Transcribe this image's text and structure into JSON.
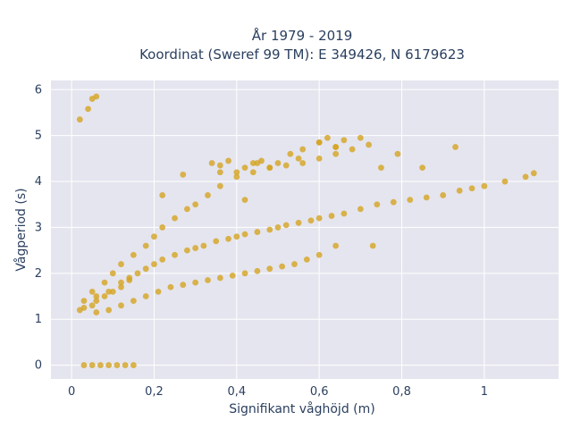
{
  "chart_data": {
    "type": "scatter",
    "title": [
      "År 1979 - 2019",
      "Koordinat (Sweref 99 TM): E 349426, N 6179623"
    ],
    "xlabel": "Signifikant våghöjd (m)",
    "ylabel": "Vågperiod (s)",
    "xlim": [
      -0.05,
      1.18
    ],
    "ylim": [
      -0.3,
      6.2
    ],
    "xticks": [
      0,
      0.2,
      0.4,
      0.6,
      0.8,
      1
    ],
    "xtick_labels": [
      "0",
      "0,2",
      "0,4",
      "0,6",
      "0,8",
      "1"
    ],
    "yticks": [
      0,
      1,
      2,
      3,
      4,
      5,
      6
    ],
    "ytick_labels": [
      "0",
      "1",
      "2",
      "3",
      "4",
      "5",
      "6"
    ],
    "grid": true,
    "marker_color": "#D4A420",
    "plot_bg": "#E5E5EF",
    "series": [
      {
        "x": [
          0.02,
          0.03,
          0.05,
          0.06,
          0.08,
          0.1,
          0.12,
          0.14,
          0.16,
          0.18,
          0.2,
          0.22,
          0.25,
          0.28,
          0.3,
          0.32,
          0.35,
          0.38,
          0.4,
          0.42,
          0.45,
          0.48,
          0.5,
          0.52,
          0.55,
          0.58,
          0.6,
          0.63,
          0.66,
          0.7,
          0.74,
          0.78,
          0.82,
          0.86,
          0.9,
          0.94,
          0.97,
          1.0,
          1.05,
          1.1,
          1.12,
          0.05,
          0.08,
          0.1,
          0.12,
          0.15,
          0.18,
          0.2,
          0.22,
          0.25,
          0.28,
          0.3,
          0.33,
          0.36,
          0.4,
          0.44,
          0.48,
          0.52,
          0.56,
          0.6,
          0.64,
          0.68,
          0.72,
          0.06,
          0.09,
          0.12,
          0.15,
          0.18,
          0.21,
          0.24,
          0.27,
          0.3,
          0.33,
          0.36,
          0.39,
          0.42,
          0.45,
          0.48,
          0.51,
          0.54,
          0.57,
          0.6,
          0.03,
          0.05,
          0.07,
          0.09,
          0.11,
          0.13,
          0.15,
          0.03,
          0.06,
          0.09,
          0.12,
          0.14,
          0.02,
          0.04,
          0.05,
          0.06,
          0.34,
          0.36,
          0.38,
          0.4,
          0.42,
          0.44,
          0.46,
          0.5,
          0.55,
          0.6,
          0.62,
          0.64,
          0.66,
          0.7,
          0.75,
          0.79,
          0.85,
          0.93,
          0.73,
          0.64,
          0.64,
          0.6,
          0.56,
          0.53,
          0.48,
          0.45,
          0.36,
          0.27,
          0.22,
          0.42
        ],
        "y": [
          1.2,
          1.25,
          1.3,
          1.4,
          1.5,
          1.6,
          1.7,
          1.85,
          2.0,
          2.1,
          2.2,
          2.3,
          2.4,
          2.5,
          2.55,
          2.6,
          2.7,
          2.75,
          2.8,
          2.85,
          2.9,
          2.95,
          3.0,
          3.05,
          3.1,
          3.15,
          3.2,
          3.25,
          3.3,
          3.4,
          3.5,
          3.55,
          3.6,
          3.65,
          3.7,
          3.8,
          3.85,
          3.9,
          4.0,
          4.1,
          4.18,
          1.6,
          1.8,
          2.0,
          2.2,
          2.4,
          2.6,
          2.8,
          3.0,
          3.2,
          3.4,
          3.5,
          3.7,
          3.9,
          4.1,
          4.2,
          4.3,
          4.35,
          4.4,
          4.5,
          4.6,
          4.7,
          4.8,
          1.15,
          1.2,
          1.3,
          1.4,
          1.5,
          1.6,
          1.7,
          1.75,
          1.8,
          1.85,
          1.9,
          1.95,
          2.0,
          2.05,
          2.1,
          2.15,
          2.2,
          2.3,
          2.4,
          0,
          0,
          0,
          0,
          0,
          0,
          0,
          1.4,
          1.5,
          1.6,
          1.8,
          1.9,
          5.35,
          5.58,
          5.8,
          5.85,
          4.4,
          4.35,
          4.45,
          4.2,
          4.3,
          4.4,
          4.45,
          4.4,
          4.5,
          4.85,
          4.95,
          4.75,
          4.9,
          4.95,
          4.3,
          4.6,
          4.3,
          4.75,
          2.6,
          2.6,
          4.75,
          4.85,
          4.7,
          4.6,
          4.3,
          4.4,
          4.2,
          4.15,
          3.7,
          3.6
        ]
      }
    ]
  }
}
